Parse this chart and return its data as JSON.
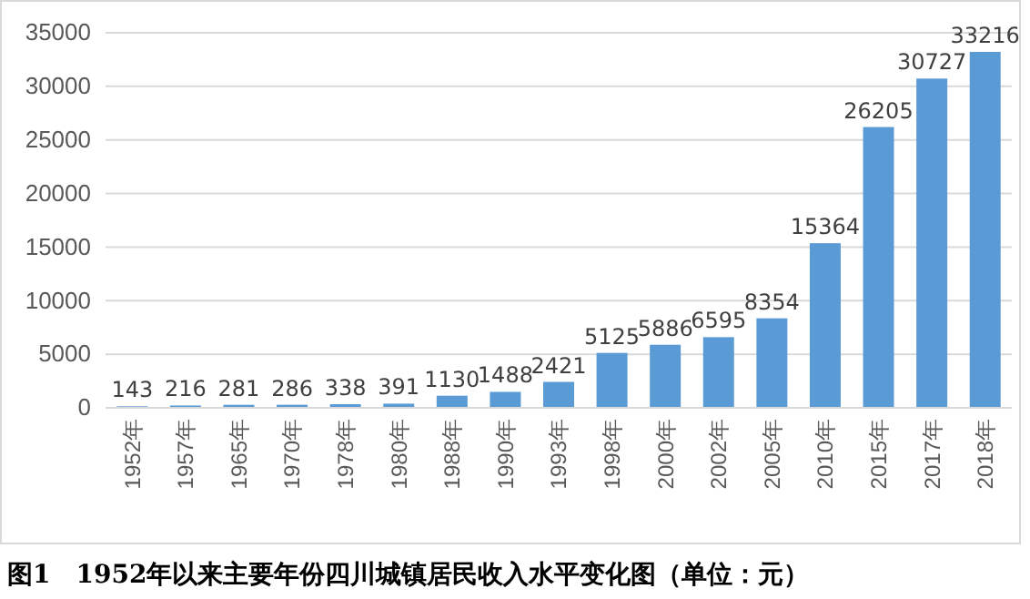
{
  "chart_data": {
    "type": "bar",
    "title": "图1　1952年以来主要年份四川城镇居民收入水平变化图（单位：元）",
    "categories": [
      "1952年",
      "1957年",
      "1965年",
      "1970年",
      "1978年",
      "1980年",
      "1988年",
      "1990年",
      "1993年",
      "1998年",
      "2000年",
      "2002年",
      "2005年",
      "2010年",
      "2015年",
      "2017年",
      "2018年"
    ],
    "values": [
      143,
      216,
      281,
      286,
      338,
      391,
      1130,
      1488,
      2421,
      5125,
      5886,
      6595,
      8354,
      15364,
      26205,
      30727,
      33216
    ],
    "color": "#5b9bd5",
    "ylim": [
      0,
      35000
    ],
    "yticks": [
      0,
      5000,
      10000,
      15000,
      20000,
      25000,
      30000,
      35000
    ],
    "grid": "y",
    "data_labels": true
  }
}
